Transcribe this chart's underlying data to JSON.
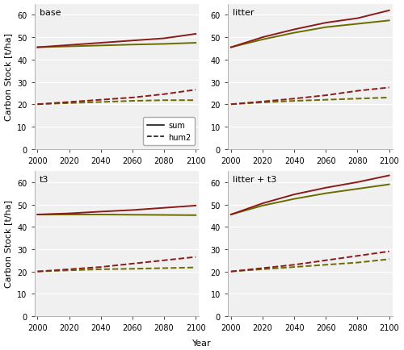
{
  "panels": [
    {
      "title": "base",
      "sum_red": [
        45.5,
        46.5,
        47.5,
        48.5,
        49.5,
        51.5
      ],
      "sum_olive": [
        45.5,
        45.9,
        46.3,
        46.7,
        47.0,
        47.5
      ],
      "hum2_red": [
        20.0,
        21.0,
        22.0,
        23.0,
        24.5,
        26.5
      ],
      "hum2_olive": [
        20.0,
        20.5,
        21.0,
        21.5,
        21.8,
        21.8
      ]
    },
    {
      "title": "litter",
      "sum_red": [
        45.5,
        50.0,
        53.5,
        56.5,
        58.5,
        62.0
      ],
      "sum_olive": [
        45.5,
        49.0,
        52.0,
        54.5,
        56.0,
        57.5
      ],
      "hum2_red": [
        20.0,
        21.2,
        22.5,
        24.0,
        26.0,
        27.5
      ],
      "hum2_olive": [
        20.0,
        20.8,
        21.5,
        22.0,
        22.5,
        23.0
      ]
    },
    {
      "title": "t3",
      "sum_red": [
        45.5,
        46.0,
        46.8,
        47.5,
        48.5,
        49.5
      ],
      "sum_olive": [
        45.5,
        45.5,
        45.5,
        45.4,
        45.3,
        45.2
      ],
      "hum2_red": [
        20.0,
        21.0,
        22.0,
        23.5,
        25.0,
        26.5
      ],
      "hum2_olive": [
        20.0,
        20.5,
        21.0,
        21.2,
        21.5,
        21.8
      ]
    },
    {
      "title": "litter + t3",
      "sum_red": [
        45.5,
        50.5,
        54.5,
        57.5,
        60.0,
        63.0
      ],
      "sum_olive": [
        45.5,
        49.5,
        52.5,
        55.0,
        57.0,
        59.0
      ],
      "hum2_red": [
        20.0,
        21.5,
        23.0,
        25.0,
        27.0,
        29.0
      ],
      "hum2_olive": [
        20.0,
        21.0,
        22.0,
        23.0,
        24.0,
        25.5
      ]
    }
  ],
  "x": [
    2000,
    2020,
    2040,
    2060,
    2080,
    2100
  ],
  "color_red": "#8B1A1A",
  "color_olive": "#6B6B00",
  "ylim": [
    0,
    65
  ],
  "yticks": [
    0,
    10,
    20,
    30,
    40,
    50,
    60
  ],
  "xlim": [
    1998,
    2102
  ],
  "xticks": [
    2000,
    2020,
    2040,
    2060,
    2080,
    2100
  ],
  "ylabel": "Carbon Stock [t/ha]",
  "xlabel": "Year",
  "background_color": "#f0f0f0",
  "linewidth": 1.4,
  "tick_fontsize": 7,
  "label_fontsize": 8,
  "title_fontsize": 8
}
